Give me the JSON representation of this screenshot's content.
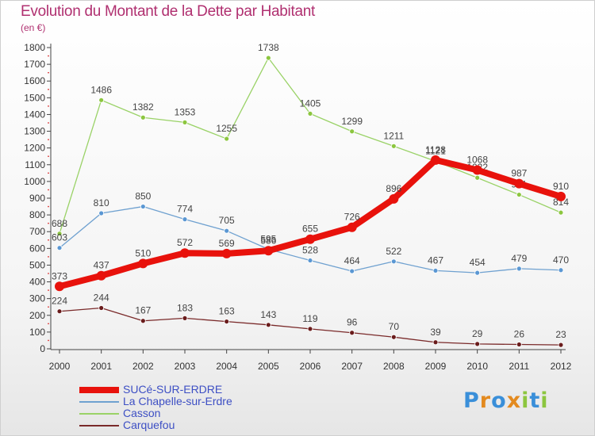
{
  "title": "Evolution du Montant de la Dette par Habitant",
  "unit": "(en €)",
  "logo": {
    "text": "Proxiti",
    "colors": [
      "#3a8fd9",
      "#e38a1f",
      "#3a8fd9",
      "#e38a1f",
      "#8cc63f",
      "#3a8fd9",
      "#8cc63f"
    ]
  },
  "chart_data": {
    "type": "line",
    "title": "Evolution du Montant de la Dette par Habitant",
    "ylabel": "(en €)",
    "xlabel": "",
    "x": [
      "2000",
      "2001",
      "2002",
      "2003",
      "2004",
      "2005",
      "2006",
      "2007",
      "2008",
      "2009",
      "2010",
      "2011",
      "2012"
    ],
    "ylim": [
      0,
      1800
    ],
    "yticks": [
      0,
      100,
      200,
      300,
      400,
      500,
      600,
      700,
      800,
      900,
      1000,
      1100,
      1200,
      1300,
      1400,
      1500,
      1600,
      1700,
      1800
    ],
    "grid": false,
    "legend_position": "bottom-left",
    "series": [
      {
        "name": "Casson",
        "color": "#9ad267",
        "values": [
          688,
          1486,
          1382,
          1353,
          1255,
          1738,
          1405,
          1299,
          1211,
          1121,
          1022,
          921,
          814
        ]
      },
      {
        "name": "La Chapelle-sur-Erdre",
        "color": "#6fa1d0",
        "values": [
          603,
          810,
          850,
          774,
          705,
          595,
          528,
          464,
          522,
          467,
          454,
          479,
          470
        ]
      },
      {
        "name": "Carquefou",
        "color": "#7a2a2a",
        "values": [
          224,
          244,
          167,
          183,
          163,
          143,
          119,
          96,
          70,
          39,
          29,
          26,
          23
        ]
      },
      {
        "name": "SUCé-SUR-ERDRE",
        "color": "#e8120c",
        "values": [
          373,
          437,
          510,
          572,
          569,
          586,
          655,
          726,
          896,
          1128,
          1068,
          987,
          910
        ]
      }
    ],
    "legend_order": [
      "SUCé-SUR-ERDRE",
      "La Chapelle-sur-Erdre",
      "Casson",
      "Carquefou"
    ]
  }
}
